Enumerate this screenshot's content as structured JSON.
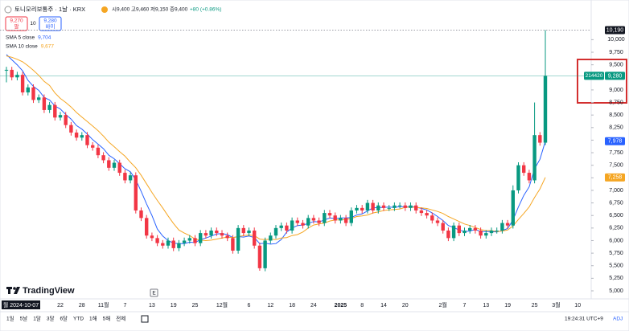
{
  "header": {
    "symbol": "토니모리보통주 · 1날 · KRX",
    "open": "시9,400",
    "high": "고9,460",
    "low": "저9,150",
    "close": "종9,400",
    "change": "+80 (+0.86%)",
    "sell_price": "9,270",
    "sell_label": "팔",
    "spread": "10",
    "buy_price": "9,280",
    "buy_label": "바이"
  },
  "watermark": "TradingView",
  "toolbar": {
    "ranges": [
      "1일",
      "5날",
      "1달",
      "3달",
      "6달",
      "YTD",
      "1해",
      "5해",
      "전체"
    ],
    "time": "19:24:31 UTC+9",
    "adj": "ADJ"
  },
  "chart_data": {
    "type": "candlestick",
    "categories": [
      "월 2024-10-07",
      null,
      null,
      null,
      null,
      null,
      null,
      null,
      null,
      null,
      "22",
      null,
      null,
      null,
      "28",
      null,
      null,
      null,
      "11월",
      null,
      null,
      null,
      "7",
      null,
      null,
      null,
      null,
      "13",
      null,
      null,
      null,
      "19",
      null,
      null,
      null,
      "25",
      null,
      null,
      null,
      null,
      "12월",
      null,
      null,
      null,
      null,
      "6",
      null,
      null,
      null,
      "12",
      null,
      null,
      null,
      "18",
      null,
      null,
      null,
      "24",
      null,
      null,
      null,
      null,
      "2025",
      null,
      null,
      null,
      "8",
      null,
      null,
      null,
      "14",
      null,
      null,
      null,
      "20",
      null,
      null,
      null,
      null,
      null,
      null,
      "2월",
      null,
      null,
      null,
      "7",
      null,
      null,
      null,
      "13",
      null,
      null,
      null,
      "19",
      null,
      null,
      null,
      null,
      "25",
      null,
      null,
      null,
      "3월",
      null,
      null,
      null,
      "10",
      null
    ],
    "open": [
      9400,
      9400,
      9250,
      9300,
      8950,
      9050,
      8800,
      8850,
      8600,
      8700,
      8450,
      8500,
      8300,
      8150,
      8050,
      8100,
      7900,
      7850,
      7700,
      7600,
      7450,
      7550,
      7350,
      7200,
      7300,
      6600,
      6450,
      6100,
      6050,
      5950,
      5900,
      6000,
      5850,
      5950,
      6000,
      6050,
      5950,
      6150,
      6100,
      6200,
      6150,
      6100,
      6050,
      5800,
      6250,
      6150,
      6200,
      5900,
      5450,
      6000,
      6100,
      6250,
      6300,
      6200,
      6400,
      6350,
      6300,
      6450,
      6400,
      6350,
      6550,
      6500,
      6400,
      6450,
      6350,
      6600,
      6650,
      6600,
      6750,
      6600,
      6700,
      6650,
      6650,
      6700,
      6700,
      6650,
      6700,
      6600,
      6550,
      6500,
      6400,
      6350,
      6200,
      6050,
      6300,
      6150,
      6200,
      6250,
      6200,
      6100,
      6150,
      6200,
      6200,
      6350,
      6300,
      7000,
      7500,
      7350,
      7200,
      8100,
      7950,
      null,
      null,
      null,
      null,
      null,
      null,
      null
    ],
    "high": [
      9460,
      9460,
      9360,
      9360,
      9110,
      9110,
      8910,
      8910,
      8760,
      8760,
      8560,
      8560,
      8360,
      8210,
      8160,
      8160,
      7960,
      7910,
      7760,
      7660,
      7610,
      7610,
      7410,
      7360,
      7360,
      6660,
      6510,
      6160,
      6110,
      6010,
      6060,
      6060,
      6010,
      6060,
      6110,
      6110,
      6210,
      6210,
      6260,
      6260,
      6210,
      6160,
      6110,
      6310,
      6310,
      6260,
      6260,
      5960,
      6060,
      6160,
      6310,
      6360,
      6360,
      6460,
      6460,
      6410,
      6510,
      6510,
      6460,
      6610,
      6610,
      6560,
      6510,
      6510,
      6660,
      6710,
      6710,
      6810,
      6810,
      6760,
      6760,
      6710,
      6760,
      6760,
      6760,
      6760,
      6760,
      6660,
      6610,
      6560,
      6460,
      6410,
      6260,
      6360,
      6360,
      6260,
      6310,
      6310,
      6260,
      6210,
      6260,
      6260,
      6410,
      6410,
      7100,
      7560,
      7560,
      7410,
      8750,
      8160,
      10190,
      null,
      null,
      null,
      null,
      null,
      null,
      null
    ],
    "low": [
      9150,
      9190,
      9190,
      8890,
      8890,
      8740,
      8740,
      8540,
      8540,
      8390,
      8390,
      8240,
      8090,
      7990,
      7990,
      7840,
      7790,
      7640,
      7540,
      7390,
      7390,
      7290,
      7140,
      7140,
      6540,
      6390,
      6040,
      5990,
      5890,
      5840,
      5840,
      5790,
      5790,
      5890,
      5940,
      5890,
      5890,
      6040,
      6040,
      6090,
      6040,
      5990,
      5740,
      5740,
      6090,
      6090,
      5840,
      5400,
      5390,
      5940,
      6040,
      6190,
      6140,
      6140,
      6290,
      6240,
      6240,
      6340,
      6290,
      6290,
      6440,
      6340,
      6340,
      6290,
      6290,
      6540,
      6540,
      6540,
      6540,
      6540,
      6590,
      6590,
      6590,
      6640,
      6590,
      6590,
      6540,
      6490,
      6440,
      6340,
      6290,
      6140,
      5990,
      5990,
      6090,
      6090,
      6140,
      6140,
      6040,
      6040,
      6090,
      6140,
      6140,
      6240,
      6240,
      6940,
      7290,
      7140,
      7140,
      7890,
      7900,
      null,
      null,
      null,
      null,
      null,
      null,
      null
    ],
    "close": [
      9400,
      9250,
      9300,
      8950,
      9050,
      8800,
      8850,
      8600,
      8700,
      8450,
      8500,
      8300,
      8150,
      8050,
      8100,
      7900,
      7850,
      7700,
      7600,
      7450,
      7550,
      7350,
      7200,
      7300,
      6600,
      6450,
      6100,
      6050,
      5950,
      5900,
      6000,
      5850,
      5950,
      6000,
      6050,
      5950,
      6150,
      6100,
      6200,
      6150,
      6100,
      6050,
      5800,
      6250,
      6150,
      6200,
      5900,
      5450,
      6000,
      6100,
      6250,
      6300,
      6200,
      6400,
      6350,
      6300,
      6450,
      6400,
      6350,
      6550,
      6500,
      6400,
      6450,
      6350,
      6600,
      6650,
      6600,
      6750,
      6600,
      6700,
      6650,
      6650,
      6700,
      6700,
      6650,
      6700,
      6600,
      6550,
      6500,
      6400,
      6350,
      6200,
      6050,
      6300,
      6150,
      6200,
      6250,
      6200,
      6100,
      6150,
      6200,
      6200,
      6350,
      6300,
      7000,
      7500,
      7350,
      7200,
      8100,
      7950,
      9280,
      null,
      null,
      null,
      null,
      null,
      null,
      null
    ],
    "up_color": "#089981",
    "down_color": "#f23645",
    "series": [
      {
        "name": "SMA 5 close",
        "color": "#2962ff",
        "legend_value": "9,704",
        "axis_label": "7,978",
        "values": [
          9704,
          9600,
          9500,
          9380,
          9190,
          9070,
          8990,
          8850,
          8800,
          8680,
          8620,
          8510,
          8420,
          8290,
          8220,
          8120,
          8010,
          7920,
          7830,
          7700,
          7630,
          7530,
          7430,
          7370,
          7210,
          6980,
          6730,
          6500,
          6230,
          6090,
          6000,
          5950,
          5940,
          5940,
          5970,
          5960,
          6020,
          6050,
          6090,
          6130,
          6140,
          6120,
          6060,
          6080,
          6070,
          6090,
          6060,
          5940,
          5950,
          5930,
          5940,
          6020,
          6170,
          6250,
          6300,
          6310,
          6340,
          6380,
          6370,
          6410,
          6450,
          6440,
          6450,
          6450,
          6460,
          6510,
          6530,
          6590,
          6650,
          6660,
          6660,
          6670,
          6660,
          6680,
          6670,
          6680,
          6670,
          6640,
          6610,
          6550,
          6480,
          6400,
          6300,
          6260,
          6210,
          6180,
          6190,
          6220,
          6180,
          6180,
          6180,
          6170,
          6200,
          6240,
          6410,
          6670,
          6900,
          7070,
          7430,
          7620,
          7978,
          null,
          null,
          null,
          null,
          null,
          null,
          null
        ]
      },
      {
        "name": "SMA 10 close",
        "color": "#f5a623",
        "legend_value": "9,677",
        "axis_label": "7,258",
        "values": [
          9677,
          9650,
          9610,
          9560,
          9480,
          9390,
          9290,
          9170,
          9090,
          8940,
          8830,
          8750,
          8660,
          8550,
          8460,
          8370,
          8280,
          8190,
          8080,
          7960,
          7870,
          7770,
          7680,
          7560,
          7450,
          7300,
          7130,
          6960,
          6800,
          6650,
          6490,
          6340,
          6210,
          6150,
          6100,
          6030,
          6010,
          6000,
          6010,
          6030,
          6050,
          6070,
          6060,
          6080,
          6100,
          6110,
          6100,
          6030,
          6020,
          6030,
          6020,
          6050,
          6060,
          6100,
          6120,
          6170,
          6250,
          6310,
          6330,
          6350,
          6390,
          6410,
          6410,
          6420,
          6440,
          6480,
          6490,
          6510,
          6550,
          6570,
          6600,
          6610,
          6620,
          6630,
          6660,
          6670,
          6660,
          6650,
          6640,
          6610,
          6580,
          6540,
          6480,
          6430,
          6380,
          6330,
          6300,
          6260,
          6220,
          6200,
          6200,
          6180,
          6190,
          6210,
          6290,
          6420,
          6540,
          6670,
          6860,
          7030,
          7258,
          null,
          null,
          null,
          null,
          null,
          null,
          null
        ]
      }
    ],
    "ylim": [
      4840,
      10790
    ],
    "yticks": [
      {
        "value": 5000,
        "label": "5,000"
      },
      {
        "value": 5250,
        "label": "5,250"
      },
      {
        "value": 5500,
        "label": "5,500"
      },
      {
        "value": 5750,
        "label": "5,750"
      },
      {
        "value": 6000,
        "label": "6,000"
      },
      {
        "value": 6250,
        "label": "6,250"
      },
      {
        "value": 6500,
        "label": "6,500"
      },
      {
        "value": 6750,
        "label": "6,750"
      },
      {
        "value": 7000,
        "label": "7,000"
      },
      {
        "value": 7250,
        "label": "7,250"
      },
      {
        "value": 7500,
        "label": "7,500"
      },
      {
        "value": 7750,
        "label": "7,750"
      },
      {
        "value": 8000,
        "label": "8,000"
      },
      {
        "value": 8250,
        "label": "8,250"
      },
      {
        "value": 8500,
        "label": "8,500"
      },
      {
        "value": 8750,
        "label": "8,750"
      },
      {
        "value": 9000,
        "label": "9,000"
      },
      {
        "value": 9250,
        "label": "9,250"
      },
      {
        "value": 9500,
        "label": "9,500"
      },
      {
        "value": 9750,
        "label": "9,750"
      },
      {
        "value": 10000,
        "label": "10,000"
      }
    ],
    "grid": false,
    "high_marker": {
      "value": 10190,
      "label": "10,190"
    },
    "last_price": {
      "value": 9280,
      "label": "9,280",
      "countdown": "214420"
    }
  }
}
